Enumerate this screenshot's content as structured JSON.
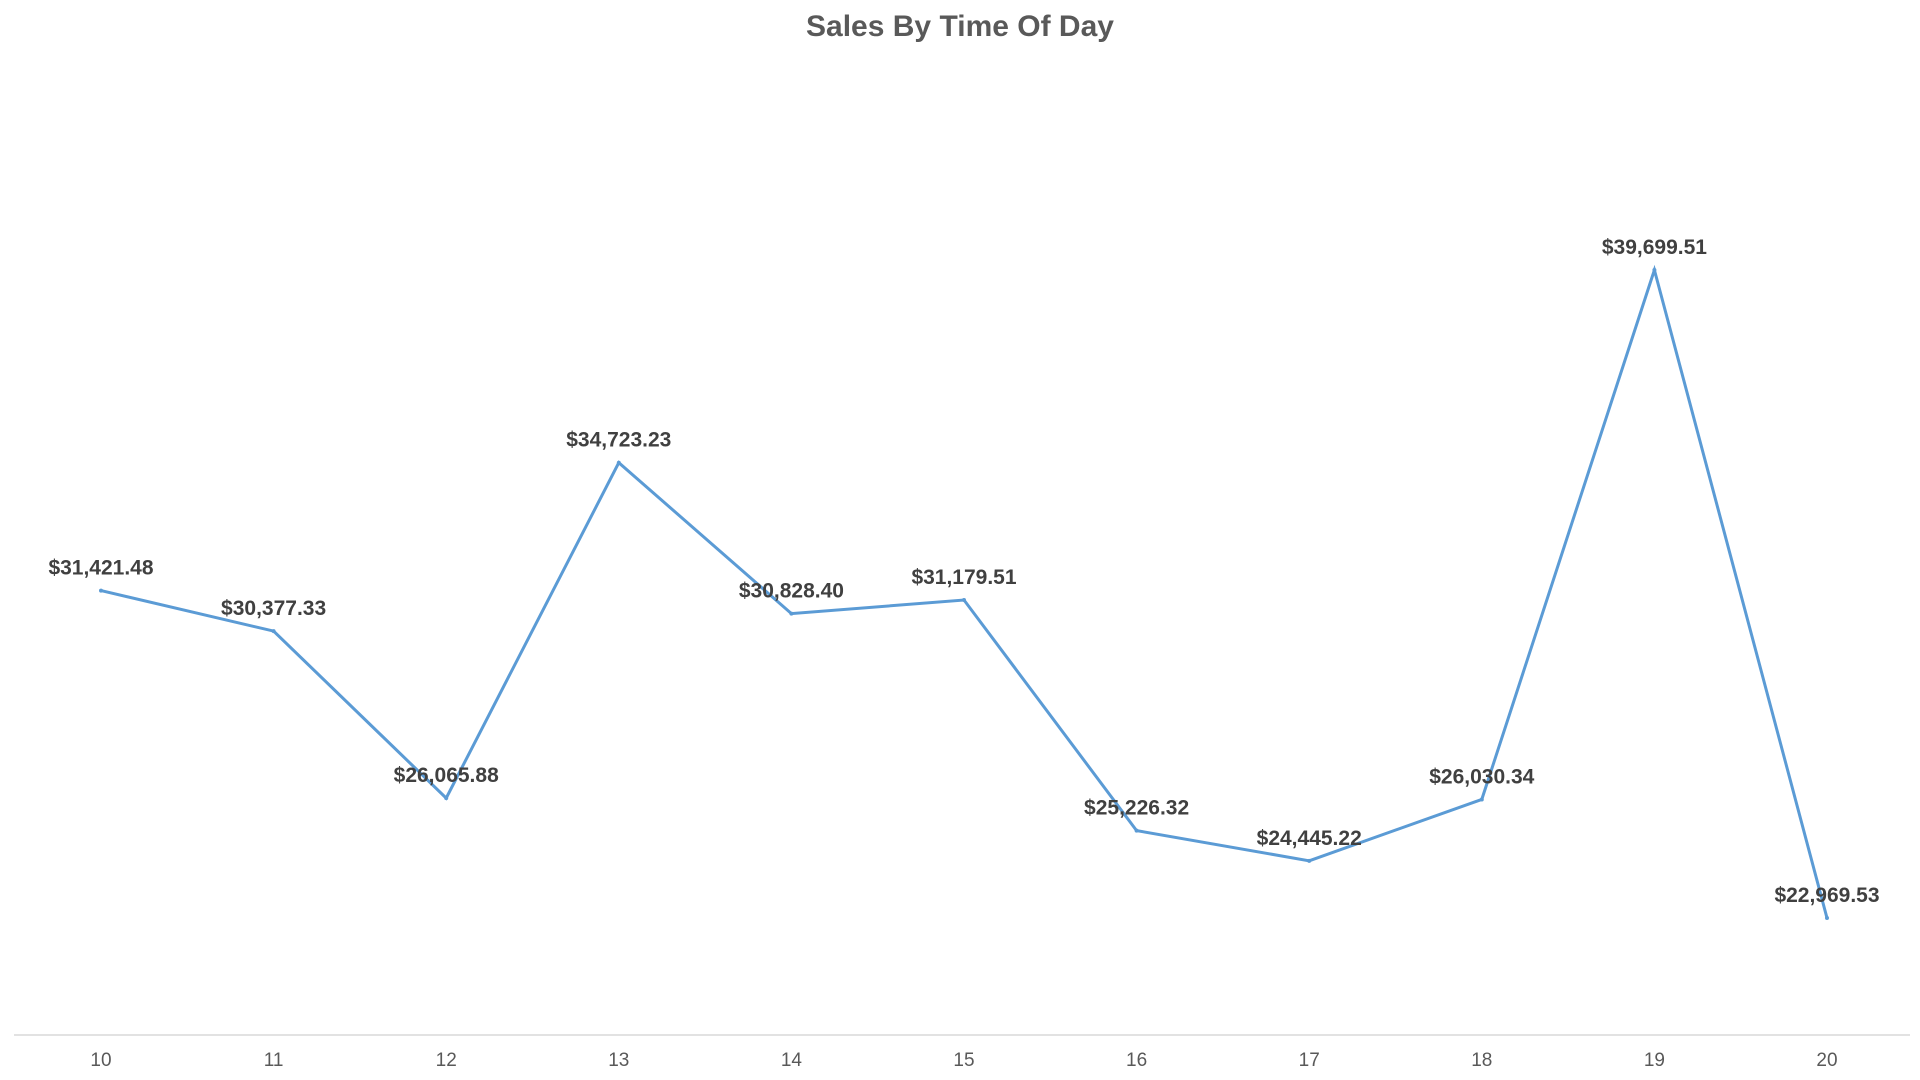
{
  "chart_data": {
    "type": "line",
    "title": "Sales By Time Of Day",
    "xlabel": "",
    "ylabel": "",
    "categories": [
      "10",
      "11",
      "12",
      "13",
      "14",
      "15",
      "16",
      "17",
      "18",
      "19",
      "20"
    ],
    "series": [
      {
        "values": [
          31421.48,
          30377.33,
          26065.88,
          34723.23,
          30828.4,
          31179.51,
          25226.32,
          24445.22,
          26030.34,
          39699.51,
          22969.53
        ],
        "labels": [
          "$31,421.48",
          "$30,377.33",
          "$26,065.88",
          "$34,723.23",
          "$30,828.40",
          "$31,179.51",
          "$25,226.32",
          "$24,445.22",
          "$26,030.34",
          "$39,699.51",
          "$22,969.53"
        ],
        "color": "#5B9BD5"
      }
    ],
    "grid": false,
    "legend": "none"
  }
}
